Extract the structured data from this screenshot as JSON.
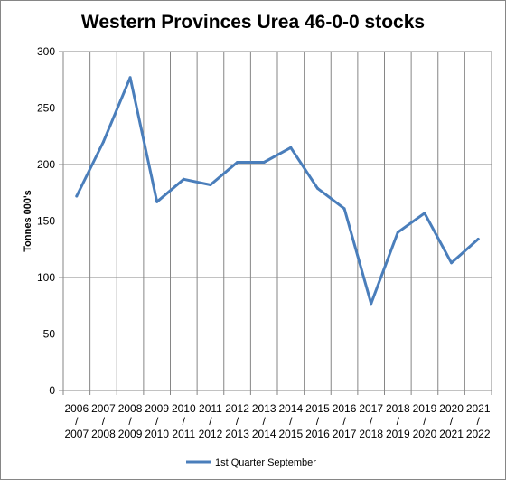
{
  "chart_data": {
    "type": "line",
    "title": "Western Provinces Urea 46-0-0 stocks",
    "xlabel": "",
    "ylabel": "Tonnes 000's",
    "ylim": [
      0,
      300
    ],
    "yticks": [
      "0",
      "50",
      "100",
      "150",
      "200",
      "250",
      "300"
    ],
    "categories": [
      [
        "2006",
        "/",
        "2007"
      ],
      [
        "2007",
        "/",
        "2008"
      ],
      [
        "2008",
        "/",
        "2009"
      ],
      [
        "2009",
        "/",
        "2010"
      ],
      [
        "2010",
        "/",
        "2011"
      ],
      [
        "2011",
        "/",
        "2012"
      ],
      [
        "2012",
        "/",
        "2013"
      ],
      [
        "2013",
        "/",
        "2014"
      ],
      [
        "2014",
        "/",
        "2015"
      ],
      [
        "2015",
        "/",
        "2016"
      ],
      [
        "2016",
        "/",
        "2017"
      ],
      [
        "2017",
        "/",
        "2018"
      ],
      [
        "2018",
        "/",
        "2019"
      ],
      [
        "2019",
        "/",
        "2020"
      ],
      [
        "2020",
        "/",
        "2021"
      ],
      [
        "2021",
        "/",
        "2022"
      ]
    ],
    "series": [
      {
        "name": "1st Quarter September",
        "color": "#4a7ebb",
        "values": [
          172,
          220,
          277,
          167,
          187,
          182,
          202,
          202,
          215,
          179,
          161,
          77,
          140,
          157,
          113,
          134
        ]
      }
    ],
    "grid": true,
    "legend": "bottom"
  }
}
